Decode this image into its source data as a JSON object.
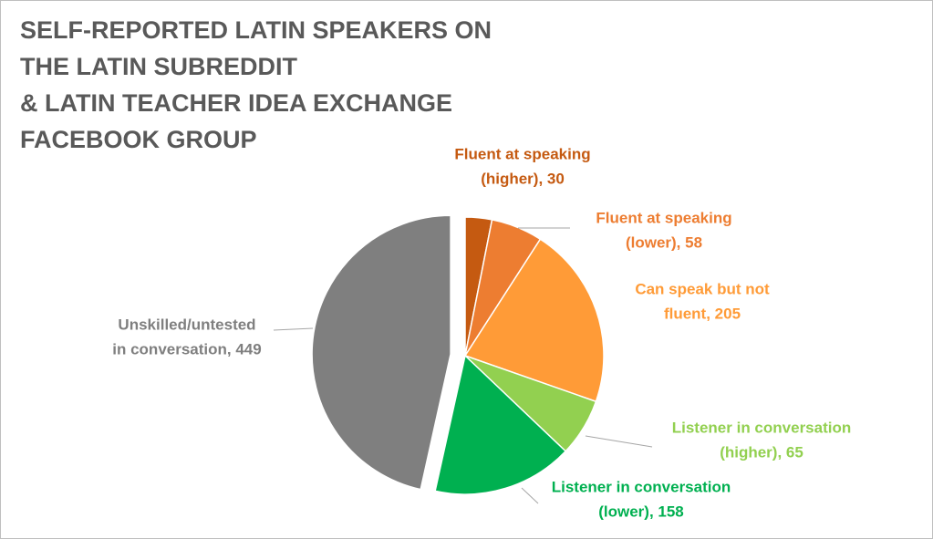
{
  "chart_data": {
    "type": "pie",
    "title": [
      "SELF-REPORTED LATIN SPEAKERS ON",
      "THE LATIN SUBREDDIT",
      "& LATIN TEACHER IDEA EXCHANGE",
      "FACEBOOK GROUP"
    ],
    "values": [
      30,
      58,
      205,
      65,
      158,
      449
    ],
    "value_labels": [
      [
        "Fluent at speaking",
        "(higher), 30"
      ],
      [
        "Fluent at speaking",
        "(lower), 58"
      ],
      [
        "Can speak but not",
        "fluent, 205"
      ],
      [
        "Listener in conversation",
        "(higher), 65"
      ],
      [
        "Listener in conversation",
        "(lower), 158"
      ],
      [
        "Unskilled/untested",
        "in conversation, 449"
      ]
    ],
    "colors": [
      "#c55a11",
      "#ed7d31",
      "#ff9b37",
      "#92d050",
      "#00b050",
      "#7f7f7f"
    ],
    "explode": [
      false,
      false,
      false,
      false,
      false,
      true
    ]
  }
}
